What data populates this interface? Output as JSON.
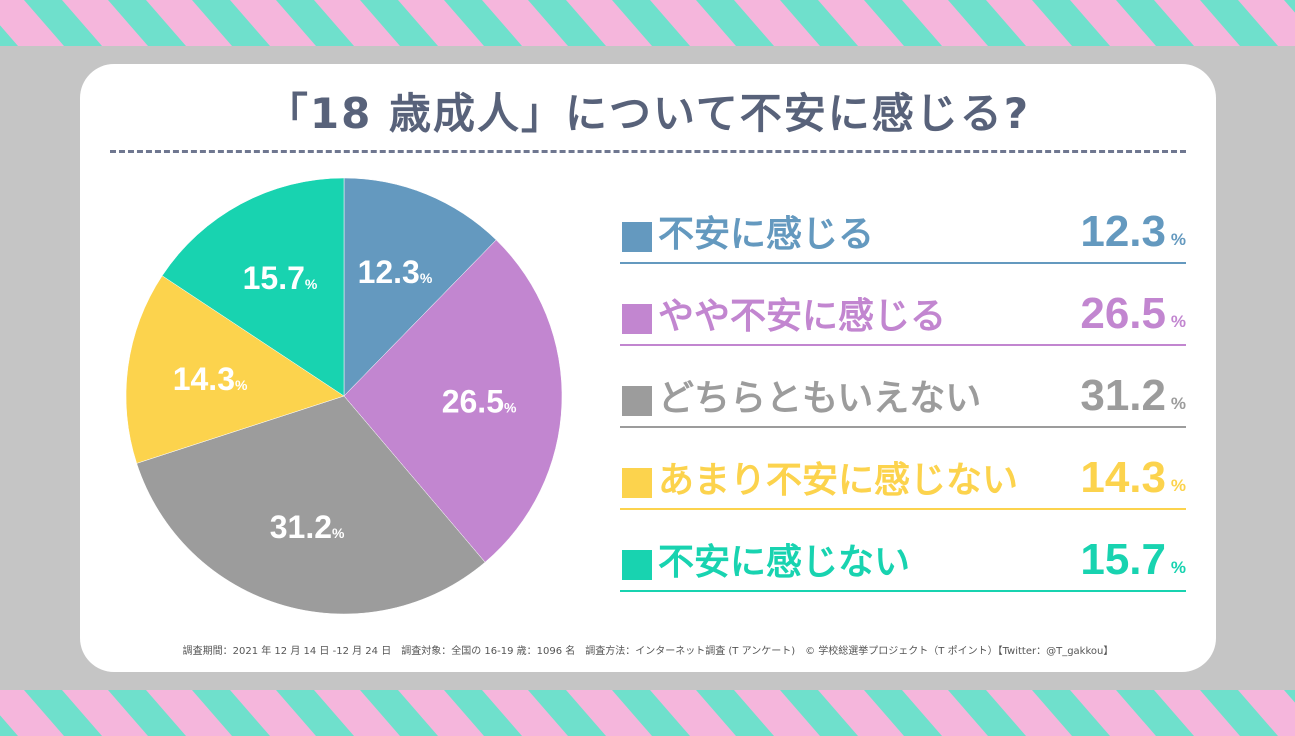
{
  "chart_data": {
    "type": "pie",
    "title": "「18 歳成人」について不安に感じる?",
    "unit": "%",
    "slices": [
      {
        "label": "不安に感じる",
        "value": 12.3,
        "display": "12.3",
        "color": "#6499bf"
      },
      {
        "label": "やや不安に感じる",
        "value": 26.5,
        "display": "26.5",
        "color": "#c286d0"
      },
      {
        "label": "どちらともいえない",
        "value": 31.2,
        "display": "31.2",
        "color": "#9c9c9c"
      },
      {
        "label": "あまり不安に感じない",
        "value": 14.3,
        "display": "14.3",
        "color": "#fcd34d"
      },
      {
        "label": "不安に感じない",
        "value": 15.7,
        "display": "15.7",
        "color": "#18d3b0"
      }
    ]
  },
  "footnote": "調査期間：2021 年 12 月 14 日 -12 月 24 日　調査対象：全国の 16-19 歳：1096 名　調査方法：インターネット調査 (T アンケート)　© 学校総選挙プロジェクト（T ポイント）【Twitter：@T_gakkou】",
  "colors": {
    "background": "#c5c5c5",
    "stripe_pink": "#f5b6dc",
    "stripe_teal": "#6fe0cc",
    "title": "#58627a"
  }
}
